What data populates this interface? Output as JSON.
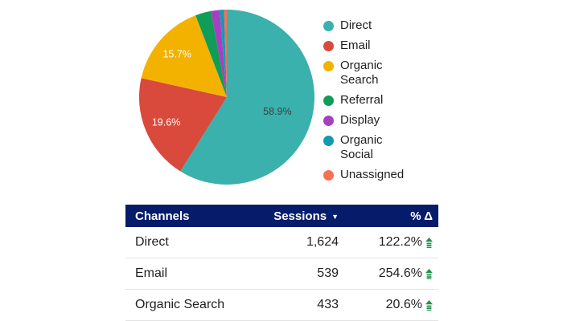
{
  "colors": {
    "table_header_bg": "#051C6B",
    "table_header_text": "#FFFFFF",
    "row_text": "#1F1F1F",
    "row_border": "#E3E3E3",
    "legend_text": "#202124",
    "delta_up_green": "#1F9149"
  },
  "chart_data": {
    "type": "pie",
    "title": "",
    "legend_position": "right",
    "start_angle_deg": 0,
    "direction": "clockwise",
    "small_slice_pcts_estimated": true,
    "slices": [
      {
        "label": "Direct",
        "pct": 58.9,
        "pct_label": "58.9%",
        "color": "#3AB1AD",
        "label_color": "#3C4043"
      },
      {
        "label": "Email",
        "pct": 19.6,
        "pct_label": "19.6%",
        "color": "#D9493C",
        "label_color": "#FFFFFF"
      },
      {
        "label": "Organic Search",
        "pct": 15.7,
        "pct_label": "15.7%",
        "color": "#F3B200",
        "label_color": "#FFFFFF"
      },
      {
        "label": "Referral",
        "pct": 2.9,
        "pct_label": "",
        "color": "#0F9D58",
        "label_color": "#FFFFFF"
      },
      {
        "label": "Display",
        "pct": 1.6,
        "pct_label": "",
        "color": "#A640C2",
        "label_color": "#FFFFFF"
      },
      {
        "label": "Organic Social",
        "pct": 0.8,
        "pct_label": "",
        "color": "#129BB0",
        "label_color": "#FFFFFF"
      },
      {
        "label": "Unassigned",
        "pct": 0.5,
        "pct_label": "",
        "color": "#F87053",
        "label_color": "#FFFFFF"
      }
    ]
  },
  "table": {
    "columns": [
      {
        "label": "Channels"
      },
      {
        "label": "Sessions",
        "sort": "desc",
        "sort_icon": "▼"
      },
      {
        "label": "% Δ"
      }
    ],
    "rows": [
      {
        "channel": "Direct",
        "sessions": "1,624",
        "delta": "122.2%",
        "trend": "up"
      },
      {
        "channel": "Email",
        "sessions": "539",
        "delta": "254.6%",
        "trend": "up"
      },
      {
        "channel": "Organic Search",
        "sessions": "433",
        "delta": "20.6%",
        "trend": "up"
      }
    ]
  }
}
